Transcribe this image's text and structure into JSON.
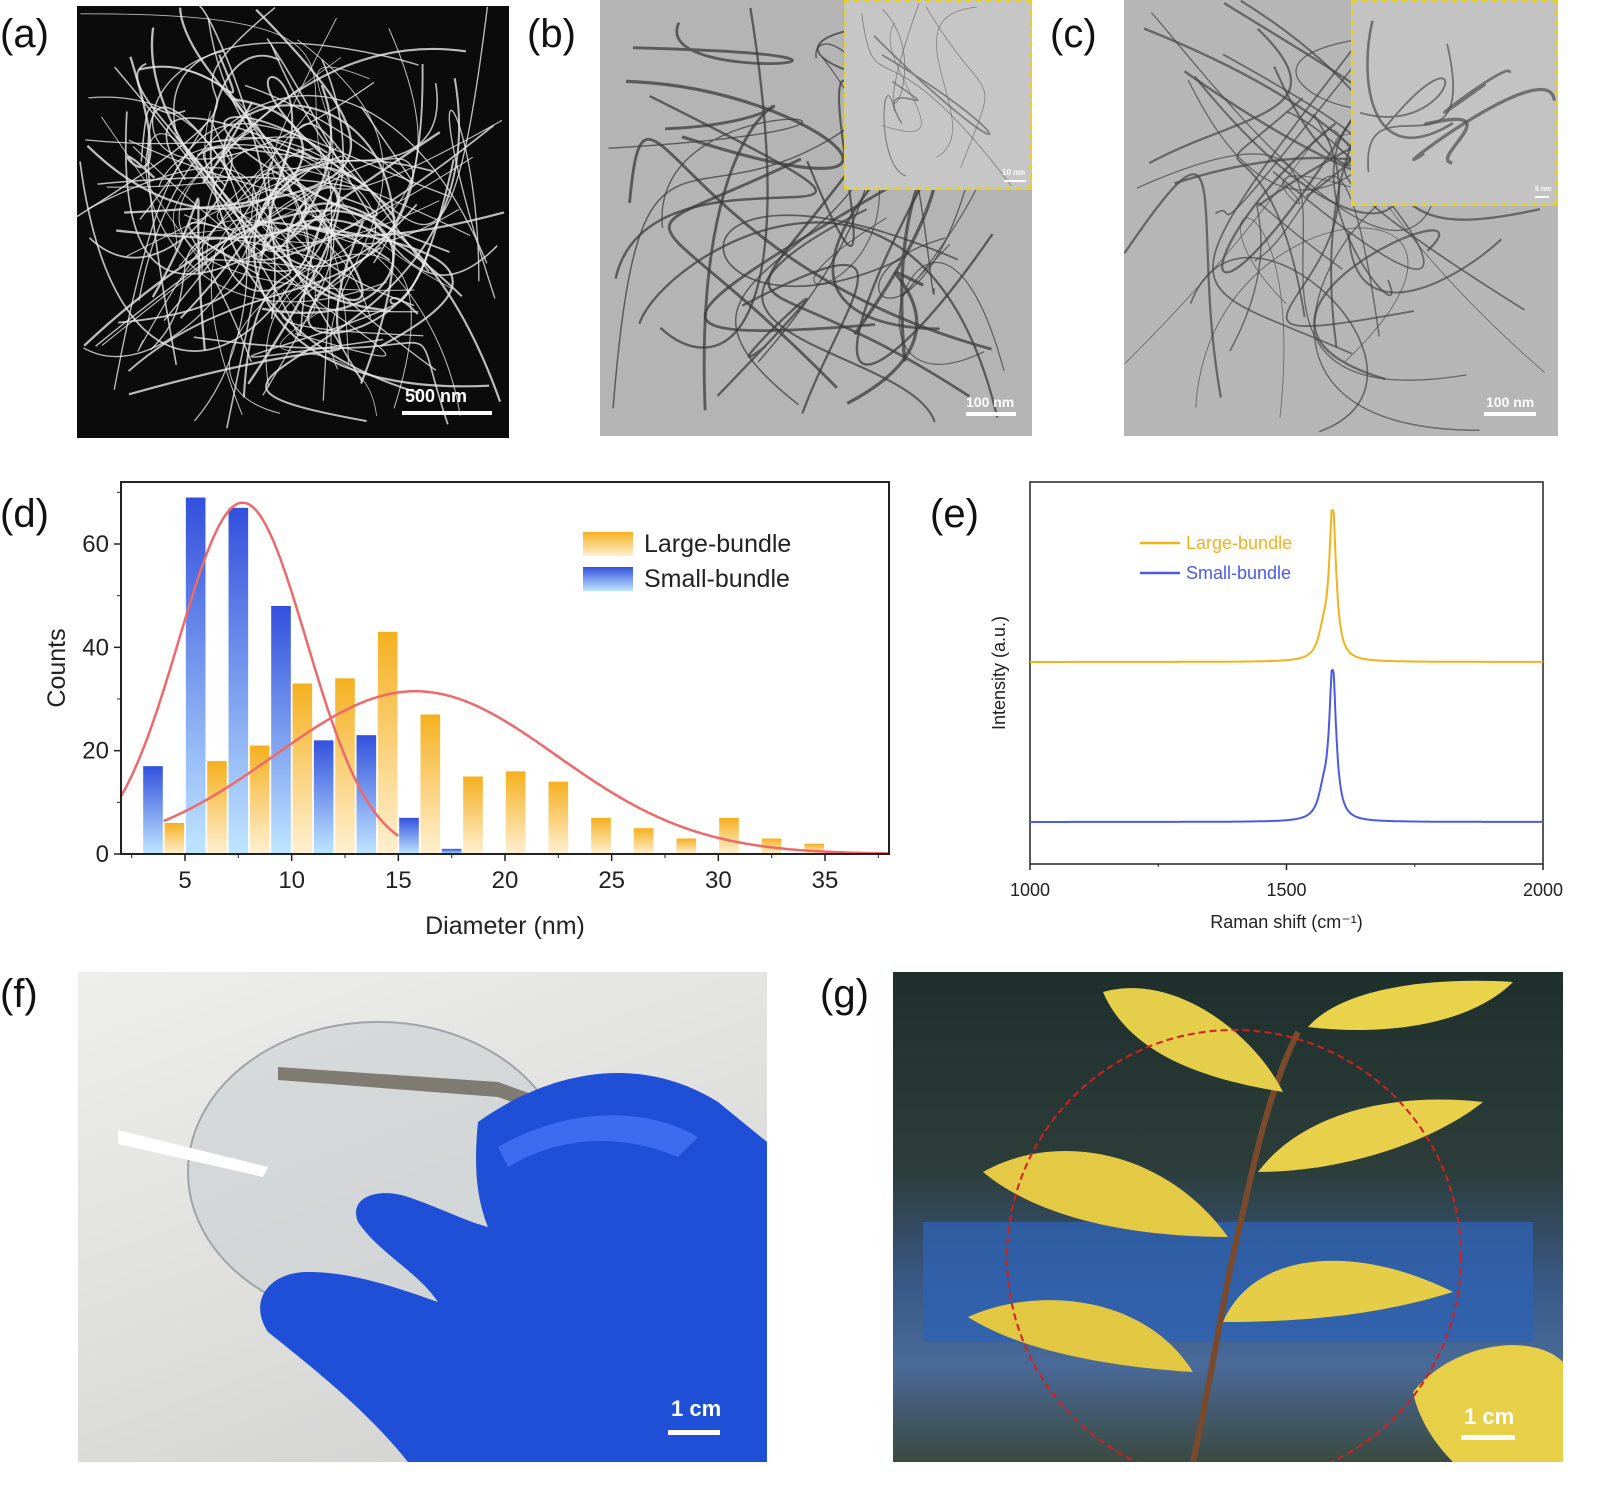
{
  "panel_labels": [
    "(a)",
    "(b)",
    "(c)",
    "(d)",
    "(e)",
    "(f)",
    "(g)"
  ],
  "scale_bars": {
    "a": "500 nm",
    "b": "100 nm",
    "b_inset": "10 nm",
    "c": "100 nm",
    "c_inset": "5 nm",
    "f": "1 cm",
    "g": "1 cm"
  },
  "colors": {
    "large_bundle": "#f5b82a",
    "small_bundle": "#3b5be0",
    "fit_curve": "#ee6a6a",
    "raman_large": "#f2b21c",
    "raman_small": "#4a5be0",
    "inset_border": "#e8d21a",
    "circle": "#cc1f1f"
  },
  "chart_data": [
    {
      "type": "bar",
      "xlabel": "Diameter (nm)",
      "ylabel": "Counts",
      "xlim": [
        2,
        38
      ],
      "ylim": [
        0,
        72
      ],
      "xticks": [
        5,
        10,
        15,
        20,
        25,
        30,
        35
      ],
      "yticks": [
        0,
        20,
        40,
        60
      ],
      "legend_position": "top-right",
      "legend": [
        "Large-bundle",
        "Small-bundle"
      ],
      "series": [
        {
          "name": "Small-bundle",
          "x": [
            3.5,
            5.5,
            7.5,
            9.5,
            11.5,
            13.5,
            15.5,
            17.5
          ],
          "values": [
            17,
            69,
            67,
            48,
            22,
            23,
            7,
            1
          ]
        },
        {
          "name": "Large-bundle",
          "x": [
            4.5,
            6.5,
            8.5,
            10.5,
            12.5,
            14.5,
            16.5,
            18.5,
            20.5,
            22.5,
            24.5,
            26.5,
            28.5,
            30.5,
            32.5,
            34.5
          ],
          "values": [
            6,
            18,
            21,
            33,
            34,
            43,
            27,
            15,
            16,
            14,
            7,
            5,
            3,
            7,
            3,
            2
          ]
        }
      ],
      "fits": [
        {
          "series": "Small-bundle",
          "center": 7.7,
          "peak": 68,
          "sigma": 3.0,
          "x_range": [
            2,
            15
          ]
        },
        {
          "series": "Large-bundle",
          "center": 15.8,
          "peak": 31.5,
          "sigma": 6.6,
          "x_range": [
            4,
            38
          ]
        }
      ]
    },
    {
      "type": "line",
      "xlabel": "Raman shift (cm⁻¹)",
      "ylabel": "Intensity (a.u.)",
      "xlim": [
        1000,
        2000
      ],
      "xticks": [
        1000,
        1500,
        2000
      ],
      "legend_position": "top-left",
      "series": [
        {
          "name": "Large-bundle",
          "peak_position": 1590,
          "peak_intensity": 1.0,
          "baseline": 0
        },
        {
          "name": "Small-bundle",
          "peak_position": 1590,
          "peak_intensity": 1.0,
          "baseline": 0
        }
      ]
    }
  ]
}
